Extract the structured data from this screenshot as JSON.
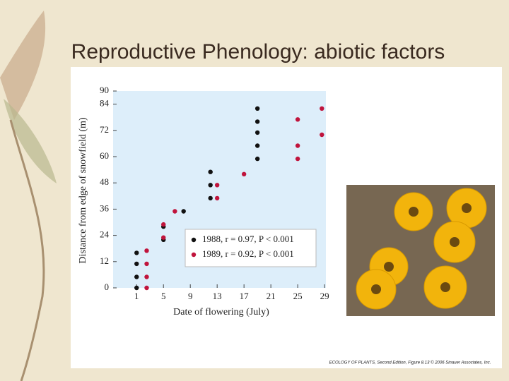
{
  "slide": {
    "title": "Reproductive Phenology: abiotic factors",
    "caption": "ECOLOGY OF PLANTS, Second Edition, Figure 8.13 © 2006 Sinauer Associates, Inc."
  },
  "chart_data": {
    "type": "scatter",
    "x_label": "Date of flowering (July)",
    "y_label": "Distance from edge of snowfield (m)",
    "xlim": [
      -2.5,
      29.2
    ],
    "xticks": [
      1,
      5,
      9,
      13,
      17,
      21,
      25,
      29
    ],
    "ylim": [
      0,
      90
    ],
    "yticks": [
      0,
      12,
      24,
      36,
      48,
      60,
      72,
      84,
      90
    ],
    "legend": "lower right",
    "series": [
      {
        "name": "1988, r = 0.97, P < 0.001",
        "color": "#111111",
        "x": [
          1,
          1,
          1,
          1,
          5,
          5,
          8,
          12,
          12,
          12,
          19,
          19,
          19,
          19,
          19
        ],
        "values": [
          16,
          11,
          5,
          0,
          28,
          22,
          35,
          53,
          47,
          41,
          82,
          76,
          71,
          65,
          59
        ]
      },
      {
        "name": "1989, r = 0.92, P < 0.001",
        "color": "#c0143c",
        "x": [
          2.5,
          2.5,
          2.5,
          2.5,
          5,
          5,
          6.7,
          13,
          13,
          17,
          25,
          25,
          25,
          28.6,
          28.6
        ],
        "values": [
          17,
          11,
          5,
          0,
          29,
          23,
          35,
          47,
          41,
          52,
          77,
          65,
          59,
          82,
          70
        ]
      }
    ]
  }
}
